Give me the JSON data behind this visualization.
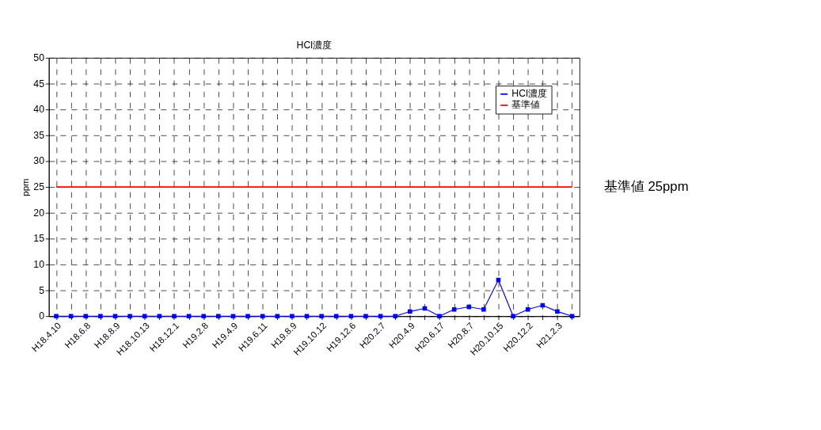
{
  "chart_data": {
    "type": "line",
    "title": "HCl濃度",
    "ylabel": "ppm",
    "categories": [
      "H18.4.10",
      null,
      "H18.6.8",
      null,
      "H18.8.9",
      null,
      "H18.10.13",
      null,
      "H18.12.1",
      null,
      "H19.2.8",
      null,
      "H19.4.9",
      null,
      "H19.6.11",
      null,
      "H19.8.9",
      null,
      "H19.10.12",
      null,
      "H19.12.6",
      null,
      "H20.2.7",
      null,
      "H20.4.9",
      null,
      "H20.6.17",
      null,
      "H20.8.7",
      null,
      "H20.10.15",
      null,
      "H20.12.2",
      null,
      "H21.2.3",
      null
    ],
    "series": [
      {
        "name": "HCl濃度",
        "color": "#0000ff",
        "marker": "square",
        "values": [
          0,
          0,
          0,
          0,
          0,
          0,
          0,
          0,
          0,
          0,
          0,
          0,
          0,
          0,
          0,
          0,
          0,
          0,
          0,
          0,
          0,
          0,
          0,
          0,
          0.9,
          1.5,
          0,
          1.3,
          1.8,
          1.3,
          7.0,
          0,
          1.3,
          2.1,
          0.9,
          0
        ]
      },
      {
        "name": "基準値",
        "color": "#ff0000",
        "marker": "none",
        "values": [
          25,
          25,
          25,
          25,
          25,
          25,
          25,
          25,
          25,
          25,
          25,
          25,
          25,
          25,
          25,
          25,
          25,
          25,
          25,
          25,
          25,
          25,
          25,
          25,
          25,
          25,
          25,
          25,
          25,
          25,
          25,
          25,
          25,
          25,
          25,
          25
        ]
      }
    ],
    "ylim": [
      0,
      50
    ],
    "yticks": [
      0,
      5,
      10,
      15,
      20,
      25,
      30,
      35,
      40,
      45,
      50
    ],
    "grid": true,
    "legend": "top right",
    "line_style": "solid",
    "annotations": [
      "基準値 25ppm"
    ]
  }
}
